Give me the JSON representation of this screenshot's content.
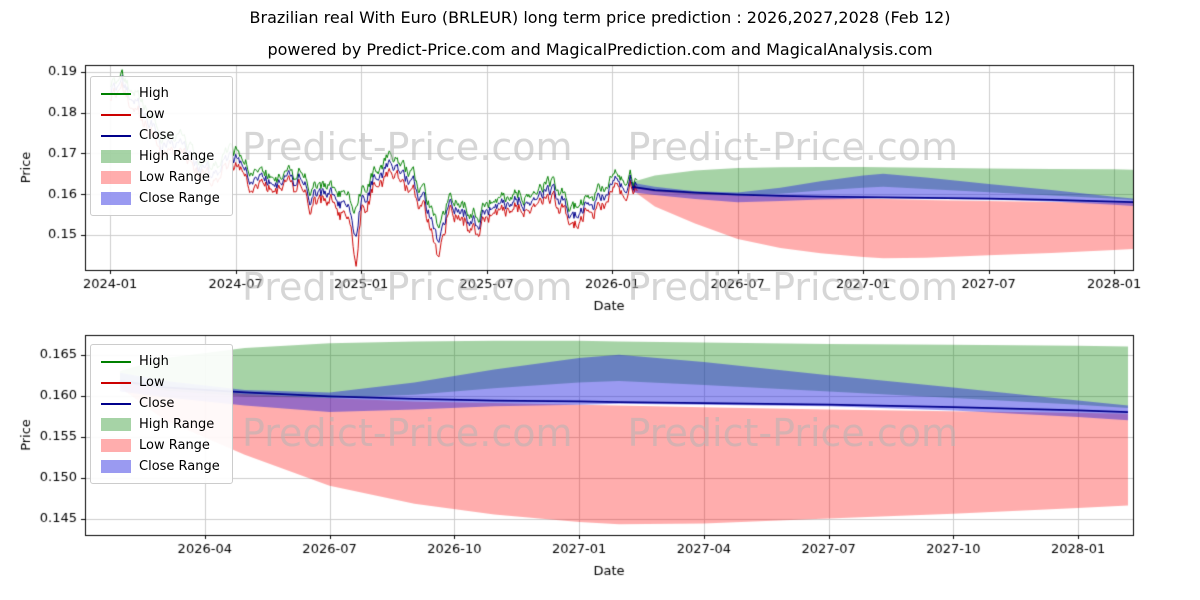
{
  "figure": {
    "title": "Brazilian real With Euro (BRLEUR) long term price prediction : 2026,2027,2028 (Feb 12)",
    "subtitle": "powered by Predict-Price.com and MagicalPrediction.com and MagicalAnalysis.com"
  },
  "watermark": {
    "text": "Predict-Price.com"
  },
  "colors": {
    "high_line": "#008000",
    "low_line": "#cc0000",
    "close_line": "#00008b",
    "high_fill": "rgba(0,128,0,0.35)",
    "low_fill": "rgba(255,0,0,0.32)",
    "close_fill": "rgba(30,30,225,0.45)",
    "grid": "#cccccc",
    "axis": "#000000",
    "watermark": "rgba(180,180,180,0.55)"
  },
  "legend": [
    {
      "label": "High",
      "swatch": "line",
      "color": "#008000"
    },
    {
      "label": "Low",
      "swatch": "line",
      "color": "#cc0000"
    },
    {
      "label": "Close",
      "swatch": "line",
      "color": "#00008b"
    },
    {
      "label": "High Range",
      "swatch": "fill",
      "color": "rgba(0,128,0,0.35)"
    },
    {
      "label": "Low Range",
      "swatch": "fill",
      "color": "rgba(255,0,0,0.32)"
    },
    {
      "label": "Close Range",
      "swatch": "fill",
      "color": "rgba(30,30,225,0.45)"
    }
  ],
  "chart_data": [
    {
      "type": "line",
      "title": "Brazilian real With Euro (BRLEUR) long term price prediction : 2026,2027,2028 (Feb 12)",
      "xlabel": "Date",
      "ylabel": "Price",
      "xlim": [
        2023.9,
        2028.075
      ],
      "ylim": [
        0.1414,
        0.1917
      ],
      "grid": true,
      "legend_position": "upper left",
      "xticks": [
        2024.0,
        2024.5,
        2025.0,
        2025.5,
        2026.0,
        2026.5,
        2027.0,
        2027.5,
        2028.0
      ],
      "xtick_labels": [
        "2024-01",
        "2024-07",
        "2025-01",
        "2025-07",
        "2026-01",
        "2026-07",
        "2027-01",
        "2027-07",
        "2028-01"
      ],
      "yticks": [
        0.15,
        0.16,
        0.17,
        0.18,
        0.19
      ],
      "ytick_labels": [
        "0.15",
        "0.16",
        "0.17",
        "0.18",
        "0.19"
      ],
      "historical": {
        "x": [
          2024.0,
          2024.04,
          2024.08,
          2024.12,
          2024.16,
          2024.2,
          2024.24,
          2024.28,
          2024.32,
          2024.36,
          2024.4,
          2024.44,
          2024.48,
          2024.52,
          2024.56,
          2024.6,
          2024.64,
          2024.68,
          2024.72,
          2024.76,
          2024.8,
          2024.84,
          2024.88,
          2024.92,
          2024.96,
          2024.98,
          2025.0,
          2025.04,
          2025.08,
          2025.12,
          2025.16,
          2025.2,
          2025.24,
          2025.28,
          2025.31,
          2025.34,
          2025.38,
          2025.42,
          2025.46,
          2025.5,
          2025.54,
          2025.58,
          2025.62,
          2025.66,
          2025.7,
          2025.74,
          2025.78,
          2025.82,
          2025.86,
          2025.9,
          2025.94,
          2025.98,
          2026.02,
          2026.06,
          2026.1
        ],
        "high": [
          0.1865,
          0.188,
          0.1856,
          0.1832,
          0.1793,
          0.1757,
          0.177,
          0.1736,
          0.1702,
          0.1676,
          0.1652,
          0.1682,
          0.1716,
          0.1692,
          0.1666,
          0.1642,
          0.1657,
          0.1632,
          0.1646,
          0.1656,
          0.1632,
          0.1606,
          0.1632,
          0.1612,
          0.1582,
          0.157,
          0.1604,
          0.164,
          0.1662,
          0.1684,
          0.1672,
          0.1642,
          0.1602,
          0.1572,
          0.1532,
          0.1572,
          0.1586,
          0.1572,
          0.1556,
          0.1576,
          0.1592,
          0.1582,
          0.1602,
          0.1616,
          0.1632,
          0.1642,
          0.1622,
          0.1596,
          0.1572,
          0.1586,
          0.1606,
          0.1622,
          0.1632,
          0.1636,
          0.1635
        ],
        "low": [
          0.1835,
          0.185,
          0.1822,
          0.1796,
          0.1757,
          0.1721,
          0.1734,
          0.17,
          0.1666,
          0.164,
          0.1616,
          0.1646,
          0.1672,
          0.1656,
          0.163,
          0.1606,
          0.1621,
          0.16,
          0.161,
          0.1624,
          0.1596,
          0.1566,
          0.1596,
          0.156,
          0.152,
          0.1425,
          0.156,
          0.1604,
          0.1626,
          0.1648,
          0.1636,
          0.1602,
          0.1556,
          0.1512,
          0.1456,
          0.1536,
          0.155,
          0.1536,
          0.1512,
          0.154,
          0.1556,
          0.1546,
          0.1566,
          0.158,
          0.1596,
          0.1606,
          0.1586,
          0.1556,
          0.1532,
          0.155,
          0.157,
          0.1586,
          0.1596,
          0.1604,
          0.1608
        ]
      },
      "forecast": {
        "x": [
          2026.08,
          2026.17,
          2026.33,
          2026.5,
          2026.67,
          2026.83,
          2027.0,
          2027.08,
          2027.25,
          2027.5,
          2027.75,
          2028.0,
          2028.1
        ],
        "high_top": [
          0.163,
          0.1646,
          0.1658,
          0.1664,
          0.1666,
          0.1667,
          0.1667,
          0.1666,
          0.1665,
          0.1663,
          0.1662,
          0.1661,
          0.166
        ],
        "high_bottom": [
          0.1616,
          0.1606,
          0.1599,
          0.1597,
          0.1601,
          0.1609,
          0.1616,
          0.1618,
          0.1613,
          0.1605,
          0.1597,
          0.1589,
          0.1585
        ],
        "low_top": [
          0.1618,
          0.161,
          0.1602,
          0.1597,
          0.1593,
          0.1591,
          0.1589,
          0.1588,
          0.1586,
          0.1583,
          0.1581,
          0.1579,
          0.1578
        ],
        "low_bottom": [
          0.161,
          0.157,
          0.1528,
          0.149,
          0.1468,
          0.1455,
          0.1446,
          0.1443,
          0.1444,
          0.145,
          0.1456,
          0.1463,
          0.1466
        ],
        "close_top": [
          0.1628,
          0.1618,
          0.1607,
          0.1604,
          0.1616,
          0.1632,
          0.1646,
          0.165,
          0.1641,
          0.1625,
          0.161,
          0.1594,
          0.1588
        ],
        "close_bottom": [
          0.1605,
          0.1598,
          0.1588,
          0.158,
          0.1583,
          0.1587,
          0.1589,
          0.159,
          0.1589,
          0.1587,
          0.1582,
          0.1574,
          0.157
        ],
        "close": [
          0.1618,
          0.161,
          0.1604,
          0.1599,
          0.1596,
          0.1594,
          0.1593,
          0.1592,
          0.1591,
          0.1589,
          0.1586,
          0.1582,
          0.158
        ]
      }
    },
    {
      "type": "line",
      "title": "",
      "xlabel": "Date",
      "ylabel": "Price",
      "xlim": [
        2026.01,
        2028.11
      ],
      "ylim": [
        0.143,
        0.1674
      ],
      "grid": true,
      "legend_position": "upper left",
      "xticks": [
        2026.25,
        2026.5,
        2026.75,
        2027.0,
        2027.25,
        2027.5,
        2027.75,
        2028.0
      ],
      "xtick_labels": [
        "2026-04",
        "2026-07",
        "2026-10",
        "2027-01",
        "2027-04",
        "2027-07",
        "2027-10",
        "2028-01"
      ],
      "yticks": [
        0.145,
        0.15,
        0.155,
        0.16,
        0.165
      ],
      "ytick_labels": [
        "0.145",
        "0.150",
        "0.155",
        "0.160",
        "0.165"
      ],
      "forecast": {
        "x": [
          2026.08,
          2026.17,
          2026.33,
          2026.5,
          2026.67,
          2026.83,
          2027.0,
          2027.08,
          2027.25,
          2027.5,
          2027.75,
          2028.0,
          2028.1
        ],
        "high_top": [
          0.163,
          0.1646,
          0.1658,
          0.1664,
          0.1666,
          0.1667,
          0.1667,
          0.1666,
          0.1665,
          0.1663,
          0.1662,
          0.1661,
          0.166
        ],
        "high_bottom": [
          0.1616,
          0.1606,
          0.1599,
          0.1597,
          0.1601,
          0.1609,
          0.1616,
          0.1618,
          0.1613,
          0.1605,
          0.1597,
          0.1589,
          0.1585
        ],
        "low_top": [
          0.1618,
          0.161,
          0.1602,
          0.1597,
          0.1593,
          0.1591,
          0.1589,
          0.1588,
          0.1586,
          0.1583,
          0.1581,
          0.1579,
          0.1578
        ],
        "low_bottom": [
          0.161,
          0.157,
          0.1528,
          0.149,
          0.1468,
          0.1455,
          0.1446,
          0.1443,
          0.1444,
          0.145,
          0.1456,
          0.1463,
          0.1466
        ],
        "close_top": [
          0.1628,
          0.1618,
          0.1607,
          0.1604,
          0.1616,
          0.1632,
          0.1646,
          0.165,
          0.1641,
          0.1625,
          0.161,
          0.1594,
          0.1588
        ],
        "close_bottom": [
          0.1605,
          0.1598,
          0.1588,
          0.158,
          0.1583,
          0.1587,
          0.1589,
          0.159,
          0.1589,
          0.1587,
          0.1582,
          0.1574,
          0.157
        ],
        "close": [
          0.1618,
          0.161,
          0.1604,
          0.1599,
          0.1596,
          0.1594,
          0.1593,
          0.1592,
          0.1591,
          0.1589,
          0.1586,
          0.1582,
          0.158
        ]
      }
    }
  ]
}
